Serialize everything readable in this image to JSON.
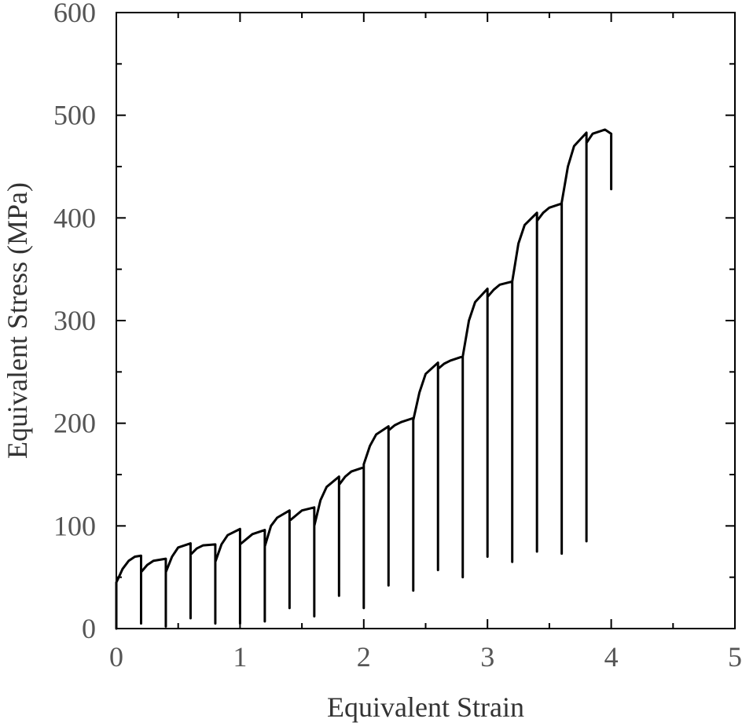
{
  "chart_data": {
    "type": "line",
    "title": "",
    "xlabel": "Equivalent Strain",
    "ylabel": "Equivalent Stress (MPa)",
    "xlim": [
      0,
      5
    ],
    "ylim": [
      0,
      600
    ],
    "x_ticks": [
      0,
      1,
      2,
      3,
      4,
      5
    ],
    "x_tick_labels": [
      "0",
      "1",
      "2",
      "3",
      "4",
      "5"
    ],
    "y_ticks": [
      0,
      100,
      200,
      300,
      400,
      500,
      600
    ],
    "y_tick_labels": [
      "0",
      "100",
      "200",
      "300",
      "400",
      "500",
      "600"
    ],
    "grid": false,
    "legend": "none",
    "line_color": "#000000",
    "series": [
      {
        "points": [
          [
            0.0,
            0
          ],
          [
            0.0,
            45
          ],
          [
            0.02,
            50
          ],
          [
            0.05,
            58
          ],
          [
            0.1,
            66
          ],
          [
            0.15,
            70
          ],
          [
            0.2,
            71
          ],
          [
            0.2,
            5
          ],
          [
            0.2,
            55
          ],
          [
            0.25,
            62
          ],
          [
            0.3,
            66
          ],
          [
            0.4,
            68
          ],
          [
            0.4,
            2
          ],
          [
            0.4,
            55
          ],
          [
            0.45,
            70
          ],
          [
            0.5,
            79
          ],
          [
            0.6,
            83
          ],
          [
            0.6,
            10
          ],
          [
            0.6,
            72
          ],
          [
            0.65,
            78
          ],
          [
            0.7,
            81
          ],
          [
            0.8,
            82
          ],
          [
            0.8,
            5
          ],
          [
            0.8,
            65
          ],
          [
            0.85,
            82
          ],
          [
            0.9,
            91
          ],
          [
            1.0,
            97
          ],
          [
            1.0,
            5
          ],
          [
            1.0,
            82
          ],
          [
            1.05,
            87
          ],
          [
            1.1,
            92
          ],
          [
            1.2,
            96
          ],
          [
            1.2,
            7
          ],
          [
            1.2,
            80
          ],
          [
            1.25,
            100
          ],
          [
            1.3,
            108
          ],
          [
            1.4,
            115
          ],
          [
            1.4,
            20
          ],
          [
            1.4,
            105
          ],
          [
            1.45,
            110
          ],
          [
            1.5,
            115
          ],
          [
            1.6,
            118
          ],
          [
            1.6,
            12
          ],
          [
            1.6,
            100
          ],
          [
            1.65,
            125
          ],
          [
            1.7,
            138
          ],
          [
            1.8,
            148
          ],
          [
            1.8,
            32
          ],
          [
            1.8,
            140
          ],
          [
            1.85,
            148
          ],
          [
            1.9,
            153
          ],
          [
            2.0,
            157
          ],
          [
            2.0,
            20
          ],
          [
            2.0,
            160
          ],
          [
            2.05,
            178
          ],
          [
            2.1,
            189
          ],
          [
            2.2,
            197
          ],
          [
            2.2,
            42
          ],
          [
            2.2,
            193
          ],
          [
            2.25,
            198
          ],
          [
            2.3,
            201
          ],
          [
            2.4,
            205
          ],
          [
            2.4,
            37
          ],
          [
            2.4,
            203
          ],
          [
            2.45,
            230
          ],
          [
            2.5,
            248
          ],
          [
            2.6,
            259
          ],
          [
            2.6,
            57
          ],
          [
            2.6,
            253
          ],
          [
            2.65,
            258
          ],
          [
            2.7,
            261
          ],
          [
            2.8,
            265
          ],
          [
            2.8,
            50
          ],
          [
            2.8,
            265
          ],
          [
            2.85,
            300
          ],
          [
            2.9,
            318
          ],
          [
            3.0,
            331
          ],
          [
            3.0,
            70
          ],
          [
            3.0,
            323
          ],
          [
            3.05,
            330
          ],
          [
            3.1,
            335
          ],
          [
            3.2,
            338
          ],
          [
            3.2,
            65
          ],
          [
            3.2,
            338
          ],
          [
            3.25,
            375
          ],
          [
            3.3,
            393
          ],
          [
            3.4,
            405
          ],
          [
            3.4,
            75
          ],
          [
            3.4,
            397
          ],
          [
            3.45,
            405
          ],
          [
            3.5,
            410
          ],
          [
            3.6,
            414
          ],
          [
            3.6,
            73
          ],
          [
            3.6,
            415
          ],
          [
            3.65,
            450
          ],
          [
            3.7,
            470
          ],
          [
            3.8,
            483
          ],
          [
            3.8,
            85
          ],
          [
            3.8,
            473
          ],
          [
            3.85,
            482
          ],
          [
            3.9,
            484
          ],
          [
            3.95,
            486
          ],
          [
            4.0,
            482
          ],
          [
            4.0,
            428
          ]
        ]
      }
    ]
  }
}
